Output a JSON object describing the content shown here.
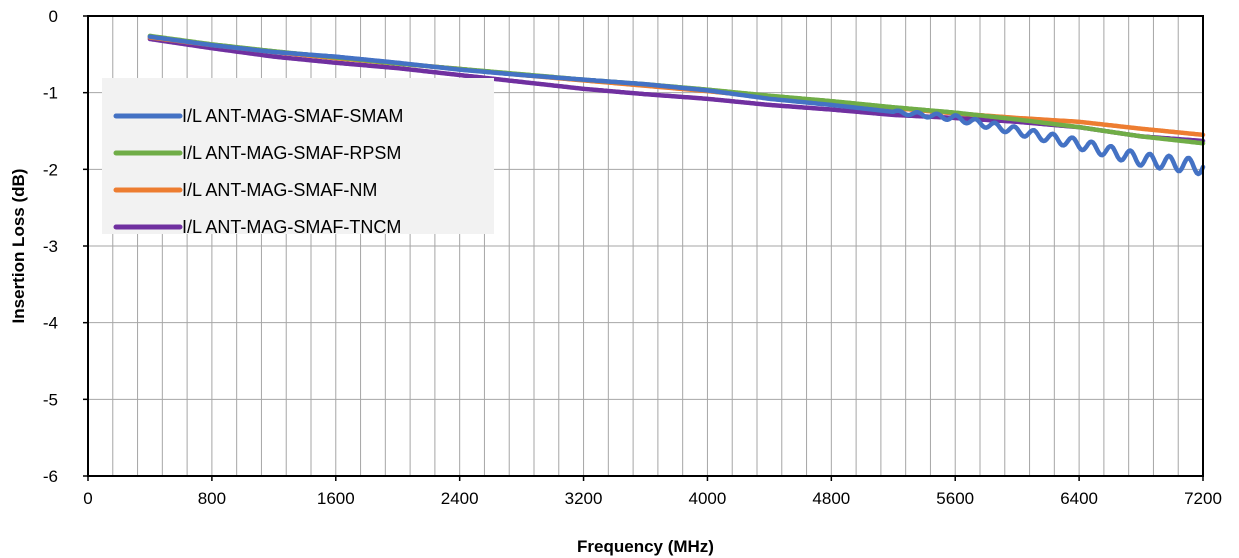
{
  "chart_data": {
    "type": "line",
    "title": "",
    "xlabel": "Frequency (MHz)",
    "ylabel": "Insertion Loss (dB)",
    "xlim": [
      0,
      7200
    ],
    "ylim": [
      -6,
      0
    ],
    "x_major_ticks": [
      0,
      800,
      1600,
      2400,
      3200,
      4000,
      4800,
      5600,
      6400,
      7200
    ],
    "x_minor_step": 160,
    "y_ticks": [
      0,
      -1,
      -2,
      -3,
      -4,
      -5,
      -6
    ],
    "grid": true,
    "legend_position": "top-left",
    "series": [
      {
        "name": "I/L ANT-MAG-SMAF-SMAM",
        "color": "#4472C4",
        "ripple": true,
        "x": [
          400,
          800,
          1200,
          1600,
          2000,
          2400,
          2800,
          3200,
          3600,
          4000,
          4400,
          4800,
          5200,
          5600,
          6000,
          6400,
          6800,
          7200
        ],
        "y": [
          -0.27,
          -0.38,
          -0.47,
          -0.53,
          -0.61,
          -0.7,
          -0.77,
          -0.83,
          -0.89,
          -0.97,
          -1.08,
          -1.16,
          -1.25,
          -1.33,
          -1.5,
          -1.67,
          -1.87,
          -1.97
        ]
      },
      {
        "name": "I/L ANT-MAG-SMAF-RPSM",
        "color": "#70AD47",
        "ripple": false,
        "x": [
          400,
          800,
          1200,
          1600,
          2000,
          2400,
          2800,
          3200,
          3600,
          4000,
          4400,
          4800,
          5200,
          5600,
          6000,
          6400,
          6800,
          7200
        ],
        "y": [
          -0.26,
          -0.37,
          -0.46,
          -0.54,
          -0.62,
          -0.69,
          -0.76,
          -0.83,
          -0.89,
          -0.96,
          -1.04,
          -1.11,
          -1.19,
          -1.26,
          -1.35,
          -1.45,
          -1.57,
          -1.66
        ]
      },
      {
        "name": "I/L ANT-MAG-SMAF-NM",
        "color": "#ED7D31",
        "ripple": false,
        "x": [
          400,
          800,
          1200,
          1600,
          2000,
          2400,
          2800,
          3200,
          3600,
          4000,
          4400,
          4800,
          5200,
          5600,
          6000,
          6400,
          6800,
          7200
        ],
        "y": [
          -0.28,
          -0.38,
          -0.47,
          -0.55,
          -0.62,
          -0.69,
          -0.77,
          -0.84,
          -0.91,
          -0.98,
          -1.06,
          -1.13,
          -1.2,
          -1.27,
          -1.33,
          -1.38,
          -1.47,
          -1.55
        ]
      },
      {
        "name": "I/L ANT-MAG-SMAF-TNCM",
        "color": "#7030A0",
        "ripple": false,
        "x": [
          400,
          800,
          1200,
          1600,
          2000,
          2400,
          2800,
          3200,
          3600,
          4000,
          4400,
          4800,
          5200,
          5600,
          6000,
          6400,
          6800,
          7200
        ],
        "y": [
          -0.3,
          -0.42,
          -0.53,
          -0.61,
          -0.68,
          -0.77,
          -0.86,
          -0.95,
          -1.02,
          -1.08,
          -1.16,
          -1.22,
          -1.29,
          -1.33,
          -1.38,
          -1.45,
          -1.57,
          -1.63
        ]
      }
    ]
  }
}
